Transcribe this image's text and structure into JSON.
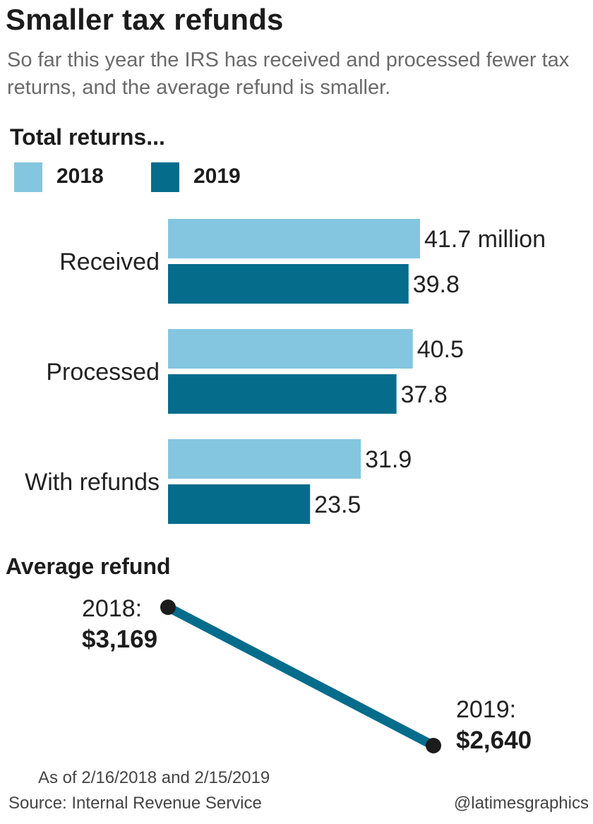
{
  "title": "Smaller tax refunds",
  "subtitle": "So far this year the IRS has received and processed fewer tax returns, and the average refund is smaller.",
  "chart_data": [
    {
      "type": "bar",
      "title": "Total returns...",
      "orientation": "horizontal",
      "categories": [
        "Received",
        "Processed",
        "With refunds"
      ],
      "series": [
        {
          "name": "2018",
          "values": [
            41.7,
            40.5,
            31.9
          ],
          "labels": [
            "41.7 million",
            "40.5",
            "31.9"
          ],
          "color": "#84c6df"
        },
        {
          "name": "2019",
          "values": [
            39.8,
            37.8,
            23.5
          ],
          "labels": [
            "39.8",
            "37.8",
            "23.5"
          ],
          "color": "#056c8c"
        }
      ],
      "unit": "million",
      "xlim": [
        0,
        41.7
      ],
      "grid": false,
      "legend": "top-left"
    },
    {
      "type": "line",
      "title": "Average refund",
      "x": [
        "2018",
        "2019"
      ],
      "values": [
        3169,
        2640
      ],
      "point_labels": [
        {
          "year": "2018:",
          "value": "$3,169"
        },
        {
          "year": "2019:",
          "value": "$2,640"
        }
      ],
      "ylim": [
        2640,
        3169
      ],
      "color": "#056c8c",
      "marker_color": "#1c1c1c"
    }
  ],
  "footer": {
    "note": "As of 2/16/2018 and 2/15/2019",
    "source": "Source: Internal Revenue Service",
    "credit": "@latimesgraphics"
  }
}
